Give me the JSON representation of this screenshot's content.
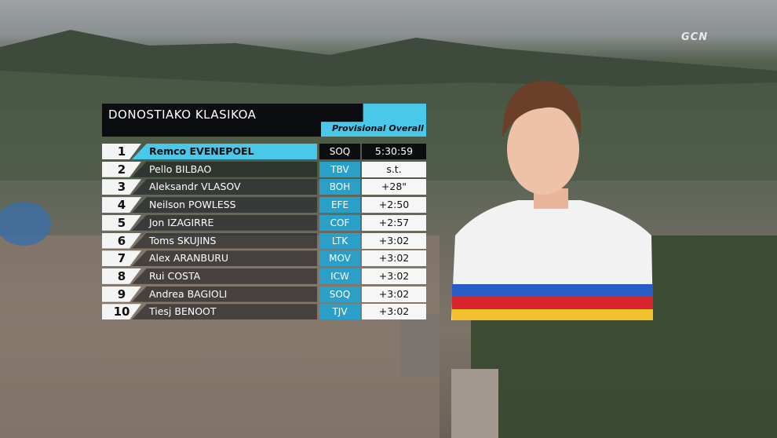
{
  "broadcaster": "GCN",
  "header": {
    "title": "DONOSTIAKO KLASIKOA",
    "subtitle": "Provisional Overall"
  },
  "table": {
    "rows": [
      [
        1,
        "Remco EVENEPOEL",
        "SOQ",
        "5:30:59"
      ],
      [
        2,
        "Pello BILBAO",
        "TBV",
        "s.t."
      ],
      [
        3,
        "Aleksandr VLASOV",
        "BOH",
        "+28\""
      ],
      [
        4,
        "Neilson POWLESS",
        "EFE",
        "+2:50"
      ],
      [
        5,
        "Jon IZAGIRRE",
        "COF",
        "+2:57"
      ],
      [
        6,
        "Toms SKUJINS",
        "LTK",
        "+3:02"
      ],
      [
        7,
        "Alex ARANBURU",
        "MOV",
        "+3:02"
      ],
      [
        8,
        "Rui COSTA",
        "ICW",
        "+3:02"
      ],
      [
        9,
        "Andrea BAGIOLI",
        "SOQ",
        "+3:02"
      ],
      [
        10,
        "Tiesj BENOOT",
        "TJV",
        "+3:02"
      ]
    ]
  }
}
